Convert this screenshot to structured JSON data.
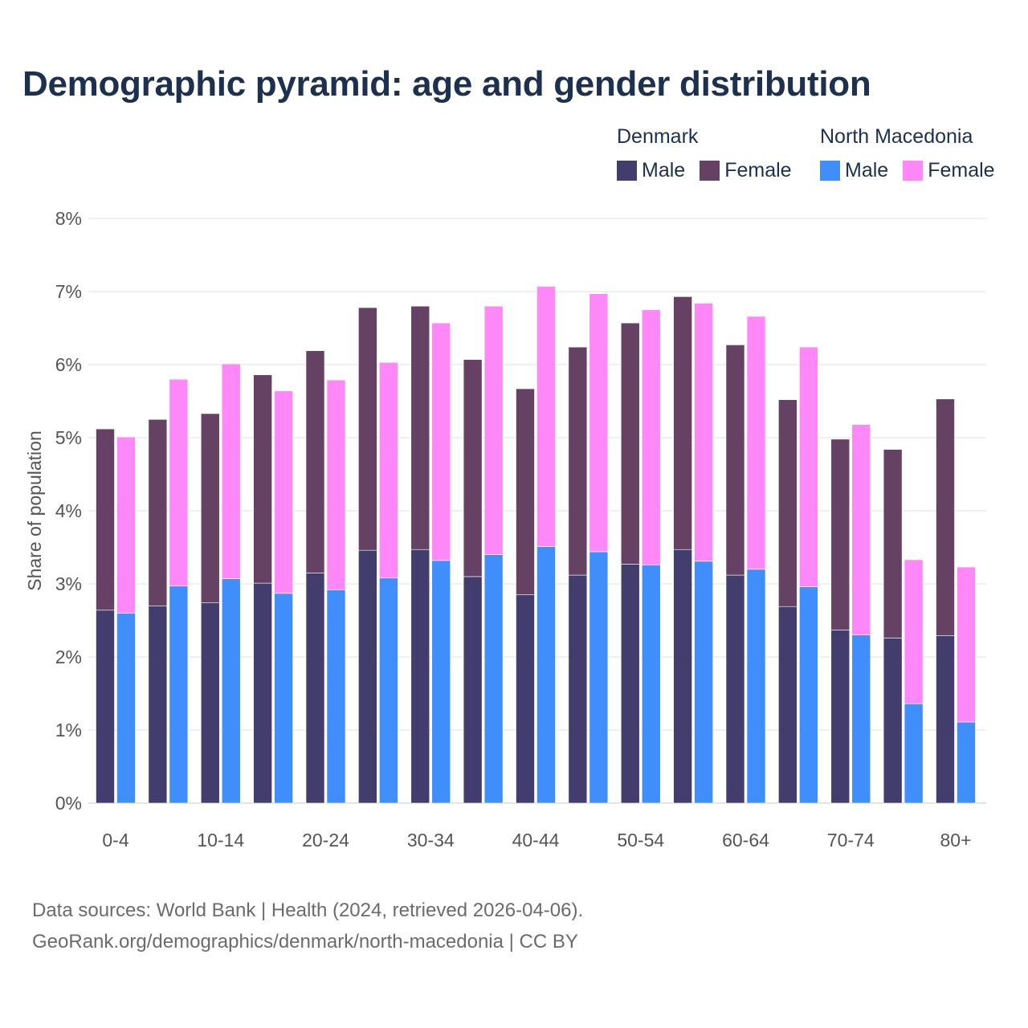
{
  "chart_data": {
    "type": "bar",
    "title": "Demographic pyramid: age and gender distribution",
    "ylabel": "Share of population",
    "xlabel": "",
    "ylim": [
      0,
      8
    ],
    "y_ticks": [
      "0%",
      "1%",
      "2%",
      "3%",
      "4%",
      "5%",
      "6%",
      "7%",
      "8%"
    ],
    "categories": [
      "0-4",
      "5-9",
      "10-14",
      "15-19",
      "20-24",
      "25-29",
      "30-34",
      "35-39",
      "40-44",
      "45-49",
      "50-54",
      "55-59",
      "60-64",
      "65-69",
      "70-74",
      "75-79",
      "80+"
    ],
    "x_tick_labels": [
      "0-4",
      "10-14",
      "20-24",
      "30-34",
      "40-44",
      "50-54",
      "60-64",
      "70-74",
      "80+"
    ],
    "grid": true,
    "legend_placement": "top-right",
    "stacked_per_country": true,
    "countries": [
      {
        "name": "Denmark",
        "series": [
          {
            "name": "Male",
            "color": "#433d6e",
            "values": [
              2.64,
              2.7,
              2.74,
              3.01,
              3.15,
              3.46,
              3.47,
              3.1,
              2.85,
              3.12,
              3.27,
              3.47,
              3.12,
              2.69,
              2.37,
              2.26,
              2.29
            ]
          },
          {
            "name": "Female",
            "color": "#654264",
            "values": [
              2.48,
              2.55,
              2.59,
              2.85,
              3.04,
              3.32,
              3.33,
              2.97,
              2.82,
              3.12,
              3.3,
              3.46,
              3.15,
              2.83,
              2.61,
              2.58,
              3.24
            ]
          }
        ]
      },
      {
        "name": "North Macedonia",
        "series": [
          {
            "name": "Male",
            "color": "#3f8efc",
            "values": [
              2.6,
              2.97,
              3.07,
              2.87,
              2.92,
              3.08,
              3.32,
              3.4,
              3.51,
              3.44,
              3.26,
              3.31,
              3.2,
              2.96,
              2.3,
              1.36,
              1.11
            ]
          },
          {
            "name": "Female",
            "color": "#ff88f8",
            "values": [
              2.41,
              2.83,
              2.94,
              2.77,
              2.87,
              2.95,
              3.25,
              3.4,
              3.56,
              3.53,
              3.49,
              3.53,
              3.46,
              3.28,
              2.88,
              1.97,
              2.12
            ]
          }
        ]
      }
    ]
  },
  "footer": {
    "line1": "Data sources: World Bank | Health (2024, retrieved 2026-04-06).",
    "line2": "GeoRank.org/demographics/denmark/north-macedonia | CC BY"
  }
}
